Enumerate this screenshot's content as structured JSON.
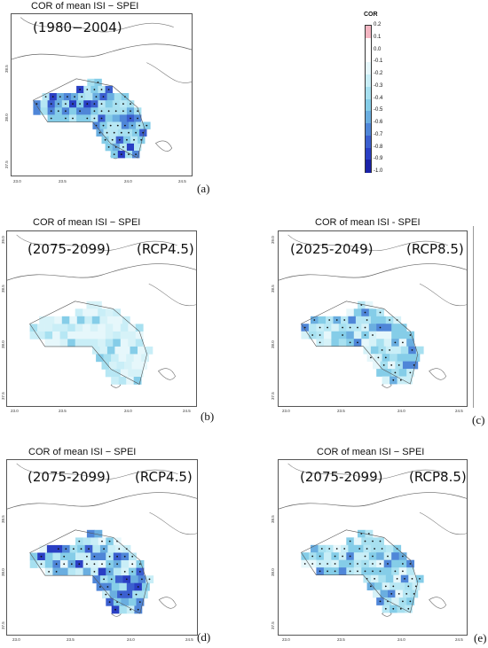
{
  "panels": {
    "a": {
      "title": "COR of mean ISI − SPEI",
      "period": "(1980−2004)",
      "scenario": "",
      "label": "(a)"
    },
    "b": {
      "title": "COR of mean ISI − SPEI",
      "period": "(2075-2099)",
      "scenario": "(RCP4.5)",
      "label": "(b)"
    },
    "c": {
      "title": "COR of mean ISI - SPEI",
      "period": "(2025-2049)",
      "scenario": "(RCP8.5)",
      "label": "(c)"
    },
    "d": {
      "title": "COR of mean ISI − SPEI",
      "period": "(2075-2099)",
      "scenario": "(RCP4.5)",
      "label": "(d)"
    },
    "e": {
      "title": "COR of mean ISI − SPEI",
      "period": "(2075-2099)",
      "scenario": "(RCP8.5)",
      "label": "(e)"
    }
  },
  "axes": {
    "x_ticks": [
      "23.0",
      "23.5",
      "24.0",
      "24.5"
    ],
    "y_ticks": [
      "38.5",
      "38.0",
      "37.5"
    ],
    "y_top": "39.0"
  },
  "legend": {
    "title": "COR",
    "labels": [
      "0.2",
      "0.1",
      "0.0",
      "-0.1",
      "-0.2",
      "-0.3",
      "-0.4",
      "-0.5",
      "-0.6",
      "-0.7",
      "-0.8",
      "-0.9",
      "-1.0"
    ],
    "colors": [
      "#f4b6c2",
      "#ffffff",
      "#ffffff",
      "#e6f7fb",
      "#c9eef7",
      "#a7e0f0",
      "#85cde8",
      "#6aaee0",
      "#4f86d8",
      "#3b5fcf",
      "#2a3fc4",
      "#1a22a8"
    ]
  }
}
